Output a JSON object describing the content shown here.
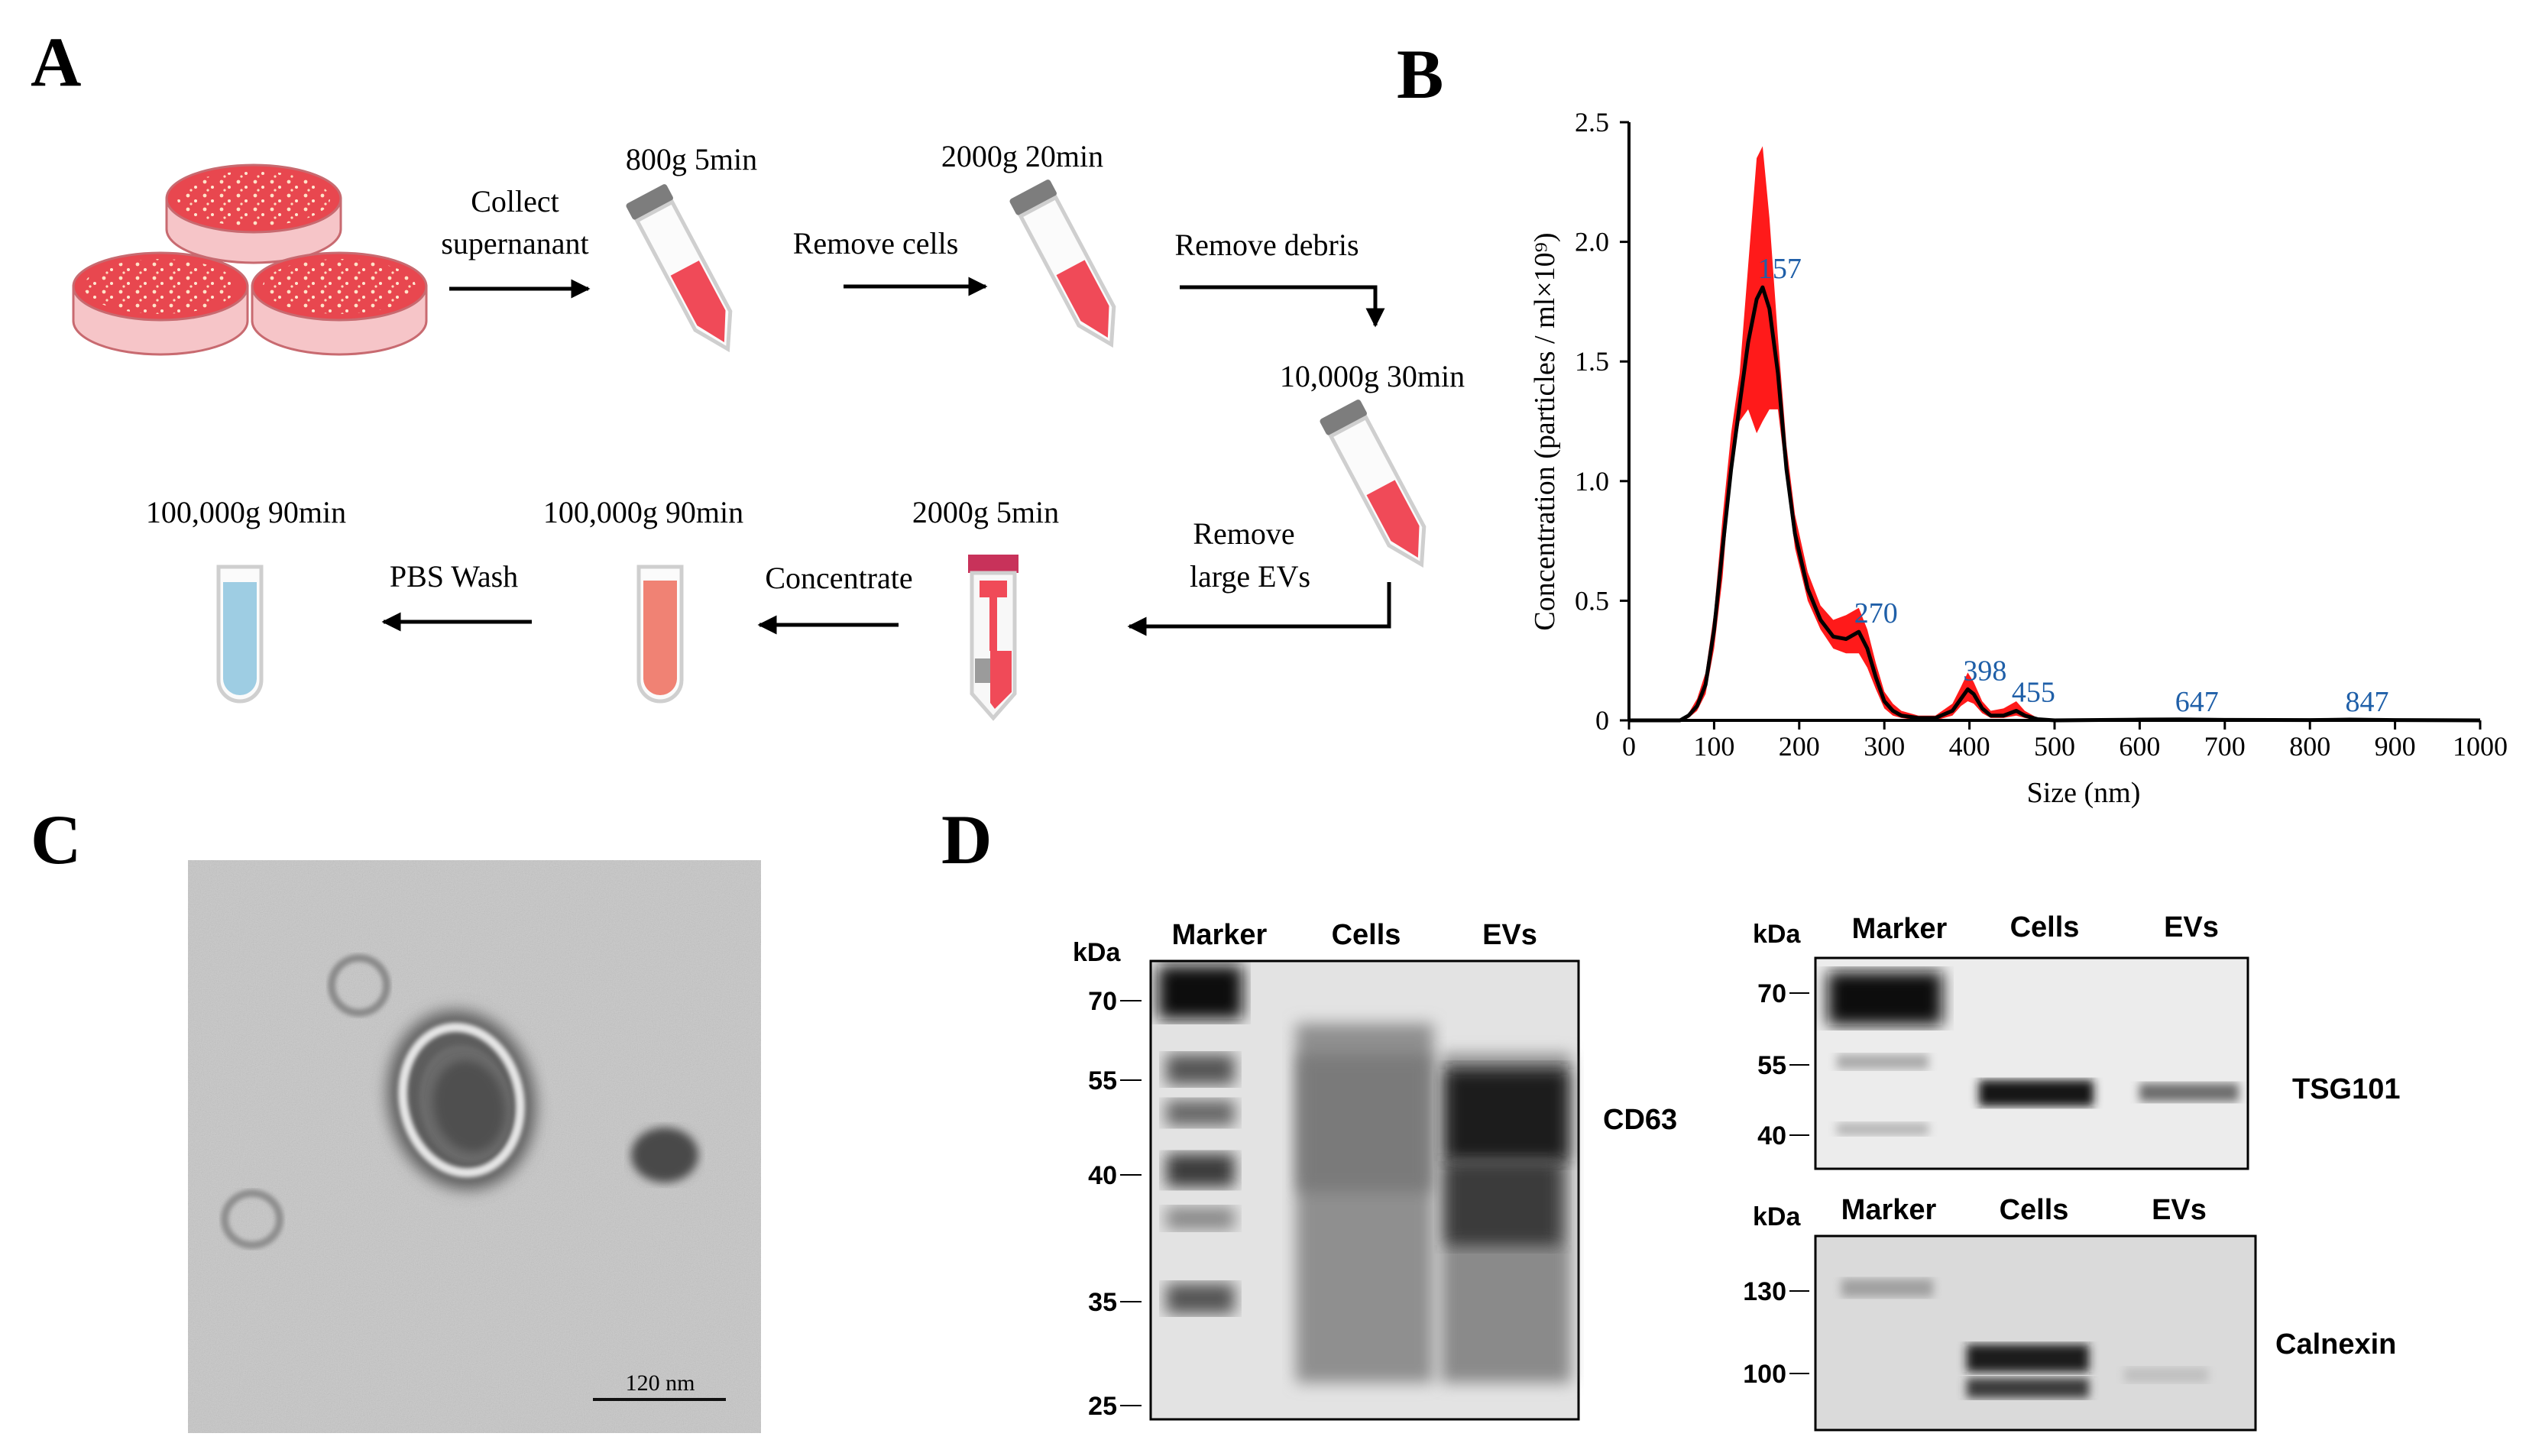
{
  "panels": {
    "a": "A",
    "b": "B",
    "c": "C",
    "d": "D"
  },
  "workflow": {
    "collect_line1": "Collect",
    "collect_line2": "supernanant",
    "spin1": "800g 5min",
    "remove_cells": "Remove cells",
    "spin2": "2000g 20min",
    "remove_debris": "Remove debris",
    "spin3": "10,000g 30min",
    "remove_large_line1": "Remove",
    "remove_large_line2": "large EVs",
    "spin4": "2000g 5min",
    "concentrate": "Concentrate",
    "spin5": "100,000g 90min",
    "pbs_wash": "PBS Wash",
    "spin6": "100,000g 90min",
    "colors": {
      "dish": "#e8474f",
      "tube_red": "#f04a58",
      "tube_salmon": "#f08274",
      "tube_blue": "#9ecde3",
      "cap": "#7d7d7d",
      "filter_cap": "#c8325a"
    }
  },
  "nta": {
    "ylabel": "Concentration (particles / ml×10⁹)",
    "xlabel": "Size (nm)",
    "y_ticks": [
      "0",
      "0.5",
      "1.0",
      "1.5",
      "2.0",
      "2.5"
    ],
    "x_ticks": [
      "0",
      "100",
      "200",
      "300",
      "400",
      "500",
      "600",
      "700",
      "800",
      "900",
      "1000"
    ],
    "peaks": [
      {
        "label": "157",
        "x": 157,
        "y": 1.81
      },
      {
        "label": "270",
        "x": 270,
        "y": 0.37
      },
      {
        "label": "398",
        "x": 398,
        "y": 0.13
      },
      {
        "label": "455",
        "x": 455,
        "y": 0.04
      },
      {
        "label": "647",
        "x": 647,
        "y": 0.0
      },
      {
        "label": "847",
        "x": 847,
        "y": 0.0
      }
    ],
    "colors": {
      "band": "#ff1a1a",
      "mean": "#000000",
      "peak_label": "#1f5fa8"
    }
  },
  "chart_data": {
    "type": "line",
    "xlabel": "Size (nm)",
    "ylabel": "Concentration (particles / ml×10⁹)",
    "xlim": [
      0,
      1000
    ],
    "ylim": [
      0,
      2.5
    ],
    "series": [
      {
        "name": "",
        "x": [
          0,
          60,
          70,
          80,
          90,
          100,
          110,
          120,
          130,
          140,
          150,
          157,
          165,
          175,
          185,
          195,
          210,
          225,
          240,
          255,
          270,
          280,
          290,
          300,
          310,
          320,
          340,
          360,
          380,
          390,
          398,
          405,
          415,
          425,
          440,
          455,
          465,
          480,
          500,
          600,
          647,
          700,
          800,
          847,
          900,
          1000
        ],
        "y": [
          0,
          0,
          0.02,
          0.06,
          0.15,
          0.38,
          0.72,
          1.05,
          1.32,
          1.58,
          1.76,
          1.81,
          1.72,
          1.45,
          1.05,
          0.78,
          0.55,
          0.42,
          0.35,
          0.34,
          0.37,
          0.3,
          0.18,
          0.08,
          0.04,
          0.02,
          0.01,
          0.01,
          0.04,
          0.09,
          0.13,
          0.11,
          0.05,
          0.02,
          0.02,
          0.04,
          0.02,
          0.005,
          0,
          0.003,
          0.004,
          0.002,
          0.001,
          0.003,
          0.001,
          0
        ]
      },
      {
        "name": "",
        "x": [
          0,
          60,
          70,
          80,
          90,
          100,
          110,
          120,
          130,
          140,
          150,
          157,
          165,
          175,
          185,
          195,
          210,
          225,
          240,
          255,
          270,
          280,
          290,
          300,
          310,
          320,
          340,
          360,
          380,
          390,
          398,
          405,
          415,
          425,
          440,
          455,
          465,
          480,
          500,
          600,
          647,
          700,
          800,
          847,
          900,
          1000
        ],
        "y_low": [
          0,
          0,
          0.01,
          0.04,
          0.11,
          0.3,
          0.6,
          1.05,
          1.25,
          1.3,
          1.2,
          1.25,
          1.3,
          1.3,
          1.0,
          0.72,
          0.5,
          0.38,
          0.3,
          0.28,
          0.28,
          0.22,
          0.13,
          0.05,
          0.02,
          0.01,
          0,
          0,
          0.02,
          0.06,
          0.08,
          0.07,
          0.03,
          0.01,
          0.01,
          0.02,
          0.01,
          0,
          0,
          0,
          0,
          0,
          0,
          0,
          0,
          0
        ],
        "y_high": [
          0,
          0,
          0.03,
          0.09,
          0.2,
          0.45,
          0.85,
          1.2,
          1.45,
          1.9,
          2.35,
          2.4,
          2.1,
          1.6,
          1.15,
          0.86,
          0.62,
          0.48,
          0.42,
          0.44,
          0.47,
          0.38,
          0.24,
          0.12,
          0.07,
          0.04,
          0.02,
          0.02,
          0.07,
          0.14,
          0.2,
          0.16,
          0.08,
          0.04,
          0.05,
          0.08,
          0.04,
          0.01,
          0,
          0.006,
          0.008,
          0.004,
          0.002,
          0.005,
          0.002,
          0
        ]
      }
    ]
  },
  "tem": {
    "scale_label": "120 nm"
  },
  "blots": {
    "kda": "kDa",
    "cd63": {
      "lanes": [
        "Marker",
        "Cells",
        "EVs"
      ],
      "mw": [
        "70",
        "55",
        "40",
        "35",
        "25"
      ],
      "protein": "CD63"
    },
    "tsg101": {
      "lanes": [
        "Marker",
        "Cells",
        "EVs"
      ],
      "mw": [
        "70",
        "55",
        "40"
      ],
      "protein": "TSG101"
    },
    "calnexin": {
      "lanes": [
        "Marker",
        "Cells",
        "EVs"
      ],
      "mw": [
        "130",
        "100"
      ],
      "protein": "Calnexin"
    }
  }
}
